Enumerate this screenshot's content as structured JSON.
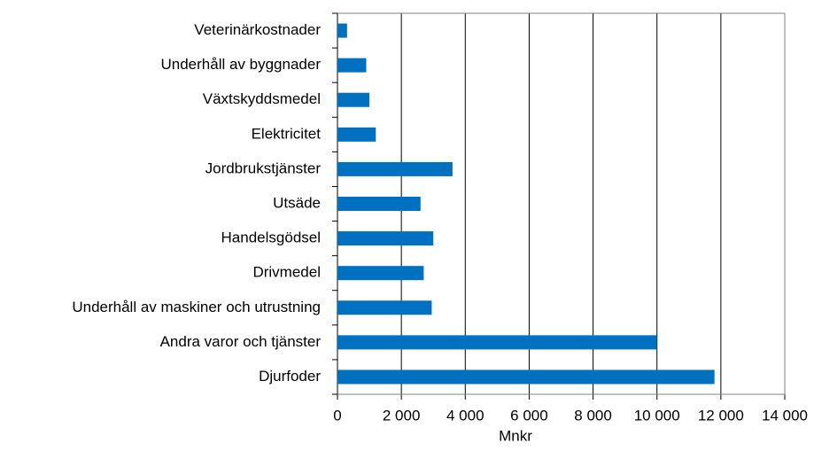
{
  "chart_data": {
    "type": "barh",
    "xlabel": "Mnkr",
    "categories": [
      "Veterinärkostnader",
      "Underhåll av byggnader",
      "Växtskyddsmedel",
      "Elektricitet",
      "Jordbrukstjänster",
      "Utsäde",
      "Handelsgödsel",
      "Drivmedel",
      "Underhåll av maskiner och utrustning",
      "Andra varor och tjänster",
      "Djurfoder"
    ],
    "values": [
      300,
      900,
      1000,
      1200,
      3600,
      2600,
      3000,
      2700,
      2950,
      10000,
      11800
    ],
    "color": "#0070c0",
    "xlim": [
      0,
      14000
    ],
    "xticks": [
      0,
      {
        "value": 2000,
        "label": "2 000"
      },
      {
        "value": 4000,
        "label": "4 000"
      },
      {
        "value": 6000,
        "label": "6 000"
      },
      {
        "value": 8000,
        "label": "8 000"
      },
      {
        "value": 10000,
        "label": "10 000"
      },
      {
        "value": 12000,
        "label": "12 000"
      },
      {
        "value": 14000,
        "label": "14 000"
      }
    ],
    "grid": true
  }
}
